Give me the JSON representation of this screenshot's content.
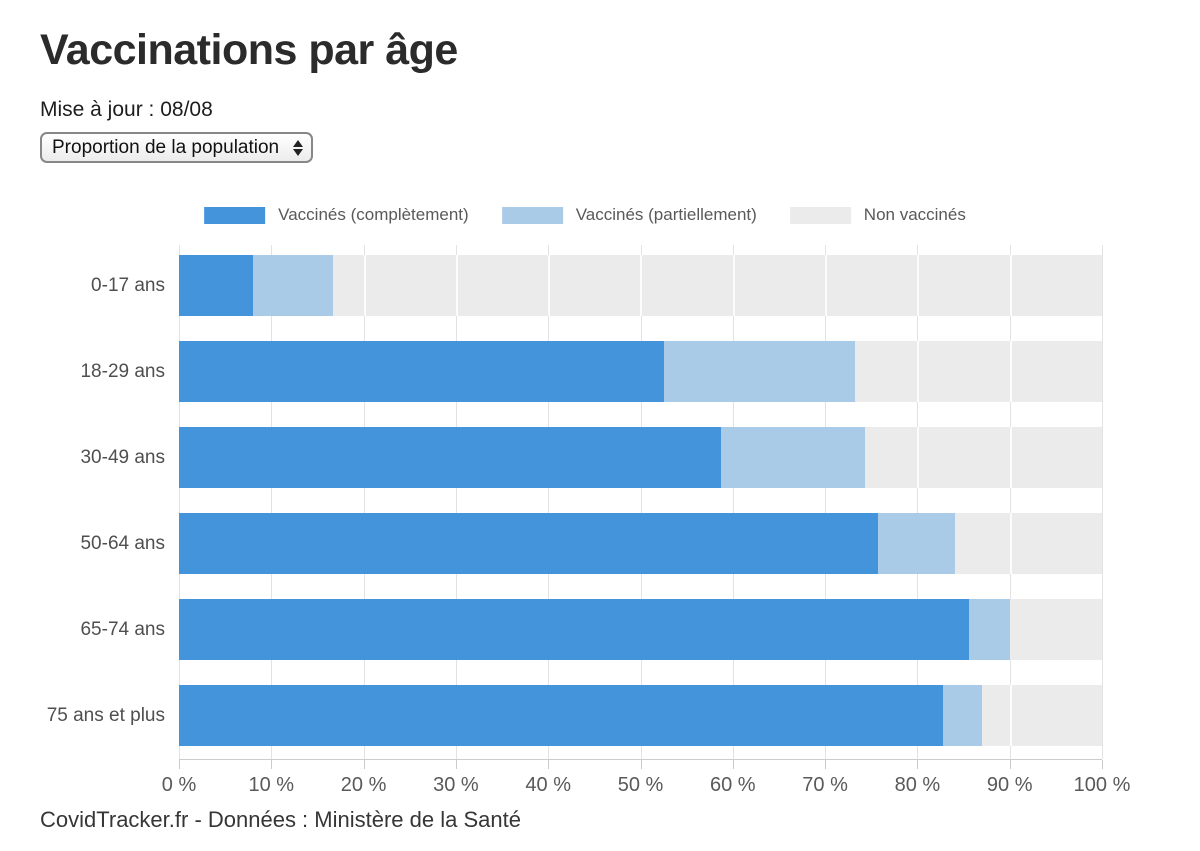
{
  "header": {
    "title": "Vaccinations par âge",
    "updated": "Mise à jour : 08/08"
  },
  "controls": {
    "metric_select": {
      "value": "Proportion de la population"
    }
  },
  "chart_data": {
    "type": "bar",
    "orientation": "horizontal",
    "stacked": true,
    "categories": [
      "0-17 ans",
      "18-29 ans",
      "30-49 ans",
      "50-64 ans",
      "65-74 ans",
      "75 ans et plus"
    ],
    "series": [
      {
        "name": "Vaccinés (complètement)",
        "color": "#4494dc",
        "values": [
          8.0,
          52.5,
          58.7,
          75.7,
          85.6,
          82.8
        ]
      },
      {
        "name": "Vaccinés (partiellement)",
        "color": "#a9cbe8",
        "values": [
          8.7,
          20.7,
          15.6,
          8.4,
          4.4,
          4.2
        ]
      },
      {
        "name": "Non vaccinés",
        "color": "#ebebeb",
        "values": [
          83.3,
          26.8,
          25.7,
          15.9,
          10.0,
          13.0
        ]
      }
    ],
    "xlim": [
      0,
      100
    ],
    "xticks": [
      0,
      10,
      20,
      30,
      40,
      50,
      60,
      70,
      80,
      90,
      100
    ],
    "xtick_suffix": " %",
    "legend_position": "top",
    "grid": true
  },
  "footer": {
    "credit": "CovidTracker.fr - Données : Ministère de la Santé"
  }
}
